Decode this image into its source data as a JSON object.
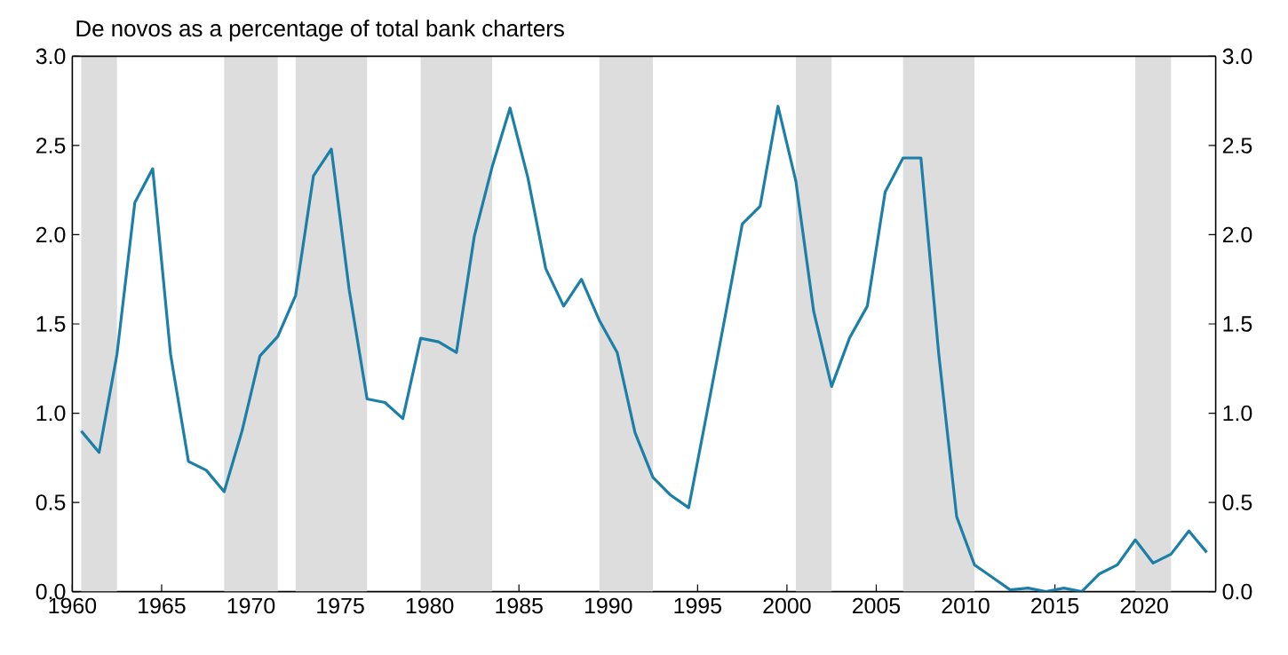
{
  "chart_data": {
    "type": "line",
    "title": "De novos as a percentage of total bank charters",
    "x": [
      1960.5,
      1961.5,
      1962.5,
      1963.5,
      1964.5,
      1965.5,
      1966.5,
      1967.5,
      1968.5,
      1969.5,
      1970.5,
      1971.5,
      1972.5,
      1973.5,
      1974.5,
      1975.5,
      1976.5,
      1977.5,
      1978.5,
      1979.5,
      1980.5,
      1981.5,
      1982.5,
      1983.5,
      1984.5,
      1985.5,
      1986.5,
      1987.5,
      1988.5,
      1989.5,
      1990.5,
      1991.5,
      1992.5,
      1993.5,
      1994.5,
      1995.5,
      1996.5,
      1997.5,
      1998.5,
      1999.5,
      2000.5,
      2001.5,
      2002.5,
      2003.5,
      2004.5,
      2005.5,
      2006.5,
      2007.5,
      2008.5,
      2009.5,
      2010.5,
      2011.5,
      2012.5,
      2013.5,
      2014.5,
      2015.5,
      2016.5,
      2017.5,
      2018.5,
      2019.5,
      2020.5,
      2021.5,
      2022.5,
      2023.5
    ],
    "series": [
      {
        "color": "#1b7fa8",
        "values": [
          0.9,
          0.78,
          1.33,
          2.18,
          2.37,
          1.33,
          0.73,
          0.68,
          0.56,
          0.9,
          1.32,
          1.43,
          1.66,
          2.33,
          2.48,
          1.69,
          1.08,
          1.06,
          0.97,
          1.42,
          1.4,
          1.34,
          1.99,
          2.38,
          2.71,
          2.32,
          1.81,
          1.6,
          1.75,
          1.52,
          1.34,
          0.89,
          0.64,
          0.54,
          0.47,
          0.99,
          1.52,
          2.06,
          2.16,
          2.72,
          2.3,
          1.57,
          1.15,
          1.42,
          1.6,
          2.24,
          2.43,
          2.43,
          1.33,
          0.42,
          0.15,
          0.08,
          0.01,
          0.02,
          0.0,
          0.02,
          0.0,
          0.1,
          0.15,
          0.29,
          0.16,
          0.21,
          0.34,
          0.22
        ]
      }
    ],
    "xlim": [
      1960,
      2024
    ],
    "xticks": [
      1960,
      1965,
      1970,
      1975,
      1980,
      1985,
      1990,
      1995,
      2000,
      2005,
      2010,
      2015,
      2020
    ],
    "ylim": [
      0,
      3
    ],
    "yticks": [
      {
        "value": 0,
        "label": "0.0"
      },
      0.5,
      {
        "value": 1,
        "label": "1.0"
      },
      1.5,
      {
        "value": 2,
        "label": "2.0"
      },
      2.5,
      {
        "value": 3,
        "label": "3.0"
      }
    ],
    "y2lim": [
      0,
      3
    ],
    "y2ticks": [
      {
        "value": 0,
        "label": "0.0"
      },
      0.5,
      {
        "value": 1,
        "label": "1.0"
      },
      1.5,
      {
        "value": 2,
        "label": "2.0"
      },
      2.5,
      {
        "value": 3,
        "label": "3.0"
      }
    ],
    "marker": "none",
    "line_style": "solid",
    "bands": [
      {
        "axis": "x",
        "from": 1960.5,
        "to": 1962.5,
        "color": "#dddddd"
      },
      {
        "axis": "x",
        "from": 1968.5,
        "to": 1971.5,
        "color": "#dddddd"
      },
      {
        "axis": "x",
        "from": 1972.5,
        "to": 1976.5,
        "color": "#dddddd"
      },
      {
        "axis": "x",
        "from": 1979.5,
        "to": 1983.5,
        "color": "#dddddd"
      },
      {
        "axis": "x",
        "from": 1989.5,
        "to": 1992.5,
        "color": "#dddddd"
      },
      {
        "axis": "x",
        "from": 2000.5,
        "to": 2002.5,
        "color": "#dddddd"
      },
      {
        "axis": "x",
        "from": 2006.5,
        "to": 2010.5,
        "color": "#dddddd"
      },
      {
        "axis": "x",
        "from": 2019.5,
        "to": 2021.5,
        "color": "#dddddd"
      }
    ]
  }
}
